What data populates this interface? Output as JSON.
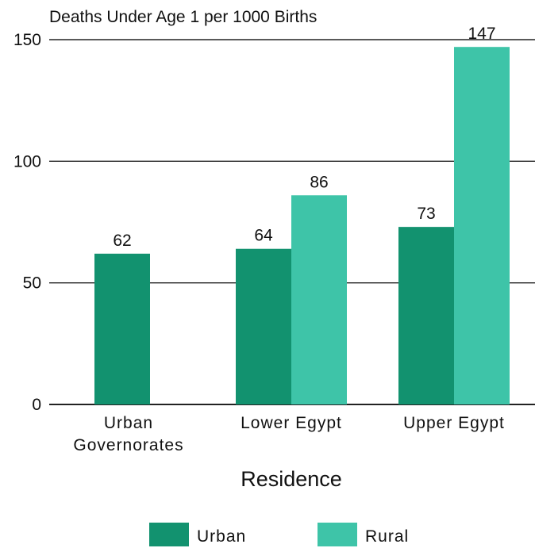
{
  "chart_data": {
    "type": "bar",
    "title": "",
    "ylabel": "Deaths Under Age 1 per 1000 Births",
    "xlabel": "Residence",
    "ylim": [
      0,
      150
    ],
    "yticks": [
      0,
      50,
      100,
      150
    ],
    "categories": [
      [
        "Urban",
        "Governorates"
      ],
      [
        "Lower Egypt"
      ],
      [
        "Upper Egypt"
      ]
    ],
    "series": [
      {
        "name": "Urban",
        "color": "#12926f",
        "values": [
          62,
          64,
          73
        ]
      },
      {
        "name": "Rural",
        "color": "#3ec4a8",
        "values": [
          null,
          86,
          147
        ]
      }
    ],
    "grid": true,
    "legend_position": "bottom"
  }
}
